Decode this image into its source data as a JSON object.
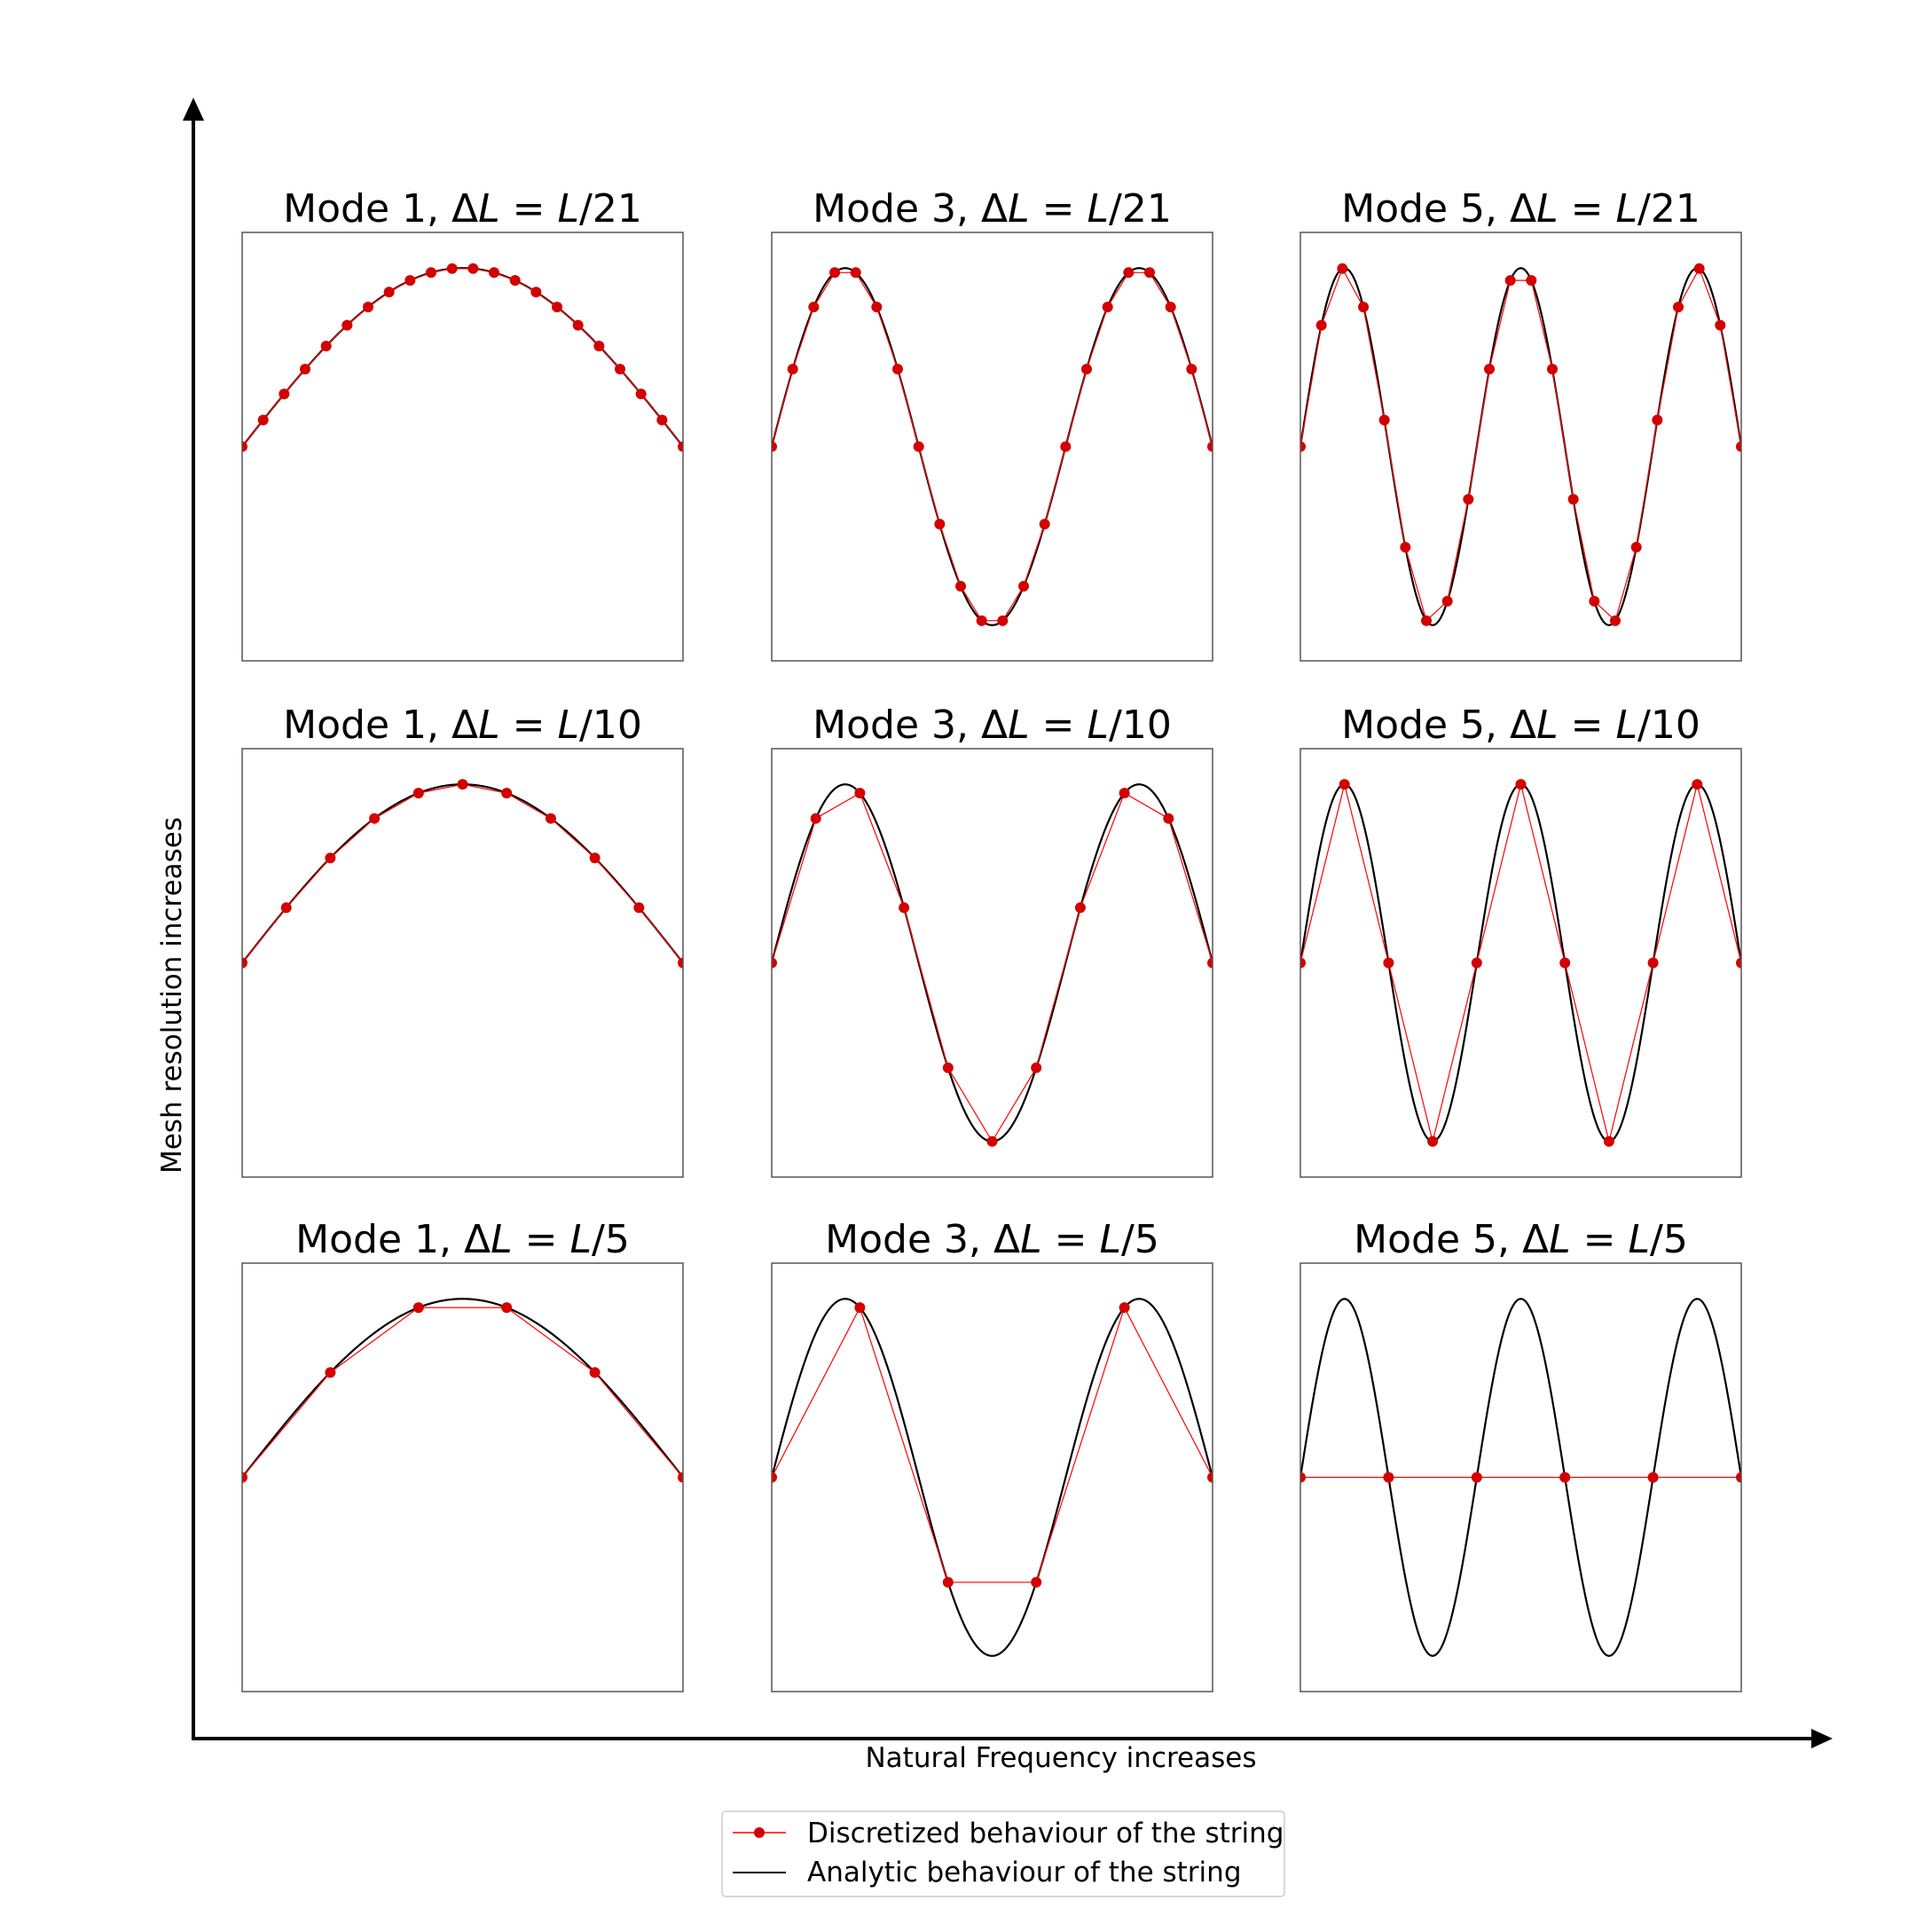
{
  "figure": {
    "xlabel": "Natural Frequency increases",
    "ylabel": "Mesh resolution increases"
  },
  "colors": {
    "analytic": "#000000",
    "discrete_line": "#ff0000",
    "discrete_marker": "#d40000",
    "frame": "#555555"
  },
  "legend": {
    "location": "bottom-center",
    "entries": [
      {
        "label": "Discretized behaviour of the string",
        "style": "red line with dot markers"
      },
      {
        "label": "Analytic behaviour of the string",
        "style": "black line"
      }
    ]
  },
  "chart_data": [
    {
      "type": "line",
      "row": 0,
      "col": 0,
      "title": {
        "mode": "Mode 1",
        "pre": "Δ",
        "L": "L",
        "eq": " = ",
        "L2": "L",
        "den": "/21"
      },
      "mode": 1,
      "segments": 21,
      "xlim": [
        0,
        1
      ],
      "ylim": [
        -1.2,
        1.2
      ]
    },
    {
      "type": "line",
      "row": 0,
      "col": 1,
      "title": {
        "mode": "Mode 3",
        "pre": "Δ",
        "L": "L",
        "eq": " = ",
        "L2": "L",
        "den": "/21"
      },
      "mode": 3,
      "segments": 21,
      "xlim": [
        0,
        1
      ],
      "ylim": [
        -1.2,
        1.2
      ]
    },
    {
      "type": "line",
      "row": 0,
      "col": 2,
      "title": {
        "mode": "Mode 5",
        "pre": "Δ",
        "L": "L",
        "eq": " = ",
        "L2": "L",
        "den": "/21"
      },
      "mode": 5,
      "segments": 21,
      "xlim": [
        0,
        1
      ],
      "ylim": [
        -1.2,
        1.2
      ]
    },
    {
      "type": "line",
      "row": 1,
      "col": 0,
      "title": {
        "mode": "Mode 1",
        "pre": "Δ",
        "L": "L",
        "eq": " = ",
        "L2": "L",
        "den": "/10"
      },
      "mode": 1,
      "segments": 10,
      "xlim": [
        0,
        1
      ],
      "ylim": [
        -1.2,
        1.2
      ]
    },
    {
      "type": "line",
      "row": 1,
      "col": 1,
      "title": {
        "mode": "Mode 3",
        "pre": "Δ",
        "L": "L",
        "eq": " = ",
        "L2": "L",
        "den": "/10"
      },
      "mode": 3,
      "segments": 10,
      "xlim": [
        0,
        1
      ],
      "ylim": [
        -1.2,
        1.2
      ]
    },
    {
      "type": "line",
      "row": 1,
      "col": 2,
      "title": {
        "mode": "Mode 5",
        "pre": "Δ",
        "L": "L",
        "eq": " = ",
        "L2": "L",
        "den": "/10"
      },
      "mode": 5,
      "segments": 10,
      "xlim": [
        0,
        1
      ],
      "ylim": [
        -1.2,
        1.2
      ]
    },
    {
      "type": "line",
      "row": 2,
      "col": 0,
      "title": {
        "mode": "Mode 1",
        "pre": "Δ",
        "L": "L",
        "eq": " = ",
        "L2": "L",
        "den": "/5"
      },
      "mode": 1,
      "segments": 5,
      "xlim": [
        0,
        1
      ],
      "ylim": [
        -1.2,
        1.2
      ]
    },
    {
      "type": "line",
      "row": 2,
      "col": 1,
      "title": {
        "mode": "Mode 3",
        "pre": "Δ",
        "L": "L",
        "eq": " = ",
        "L2": "L",
        "den": "/5"
      },
      "mode": 3,
      "segments": 5,
      "xlim": [
        0,
        1
      ],
      "ylim": [
        -1.2,
        1.2
      ]
    },
    {
      "type": "line",
      "row": 2,
      "col": 2,
      "title": {
        "mode": "Mode 5",
        "pre": "Δ",
        "L": "L",
        "eq": " = ",
        "L2": "L",
        "den": "/5"
      },
      "mode": 5,
      "segments": 5,
      "xlim": [
        0,
        1
      ],
      "ylim": [
        -1.2,
        1.2
      ]
    }
  ]
}
